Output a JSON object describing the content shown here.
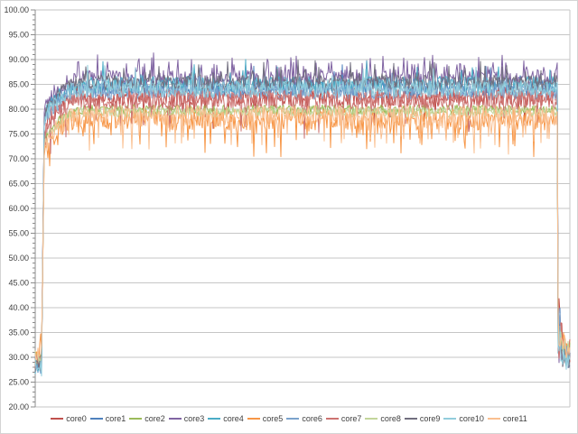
{
  "chart_data": {
    "type": "line",
    "title": "",
    "xlabel": "",
    "ylabel": "",
    "description": "Per-core CPU temperature log: 12 cores idle near 28-31, ramp under load to a noisy plateau (orange lowest ~75-79, purple highest ~85-90), then drop back to ~30-35 at the end of the run",
    "ylim": [
      20,
      100
    ],
    "ytick_step": 5,
    "ytick_labels": [
      "100.00",
      "95.00",
      "90.00",
      "85.00",
      "80.00",
      "75.00",
      "70.00",
      "65.00",
      "60.00",
      "55.00",
      "50.00",
      "45.00",
      "40.00",
      "35.00",
      "30.00",
      "25.00",
      "20.00"
    ],
    "minor_tick_step": 1,
    "grid": true,
    "legend_position": "bottom",
    "n_samples": 593,
    "phases": {
      "idle_until": 7,
      "ramp_fast_end": 10,
      "ramp_slow_end": 46,
      "drop_at": 579
    },
    "colors": {
      "gridline": "#c6c6c6",
      "axis": "#8c8c8c",
      "tick": "#8c8c8c",
      "label": "#3f3f3f",
      "frame_border": "#d4d4d4",
      "background": "#ffffff"
    },
    "series": [
      {
        "name": "core0",
        "color": "#C0504D",
        "seed": 101,
        "idle": 29.0,
        "plateau": 82.4,
        "noise": 2.0,
        "dip_chance": 0.04,
        "spike_chance": 0.0,
        "start_bump": 0,
        "tail": 31,
        "tail_spike": 14
      },
      {
        "name": "core1",
        "color": "#4F81BD",
        "seed": 102,
        "idle": 28.2,
        "plateau": 84.4,
        "noise": 1.7,
        "dip_chance": 0.0,
        "spike_chance": 0.03,
        "start_bump": 0,
        "tail": 30,
        "tail_spike": 20
      },
      {
        "name": "core2",
        "color": "#9BBB59",
        "seed": 103,
        "idle": 29.5,
        "plateau": 79.9,
        "noise": 1.0,
        "dip_chance": 0.0,
        "spike_chance": 0.0,
        "start_bump": 0,
        "tail": 31,
        "tail_spike": 8
      },
      {
        "name": "core3",
        "color": "#8064A2",
        "seed": 104,
        "idle": 28.8,
        "plateau": 86.4,
        "noise": 1.6,
        "dip_chance": 0.0,
        "spike_chance": 0.18,
        "start_bump": 0,
        "tail": 30,
        "tail_spike": 10
      },
      {
        "name": "core4",
        "color": "#4BACC6",
        "seed": 105,
        "idle": 28.0,
        "plateau": 84.9,
        "noise": 1.7,
        "dip_chance": 0.0,
        "spike_chance": 0.04,
        "start_bump": 0,
        "tail": 29,
        "tail_spike": 22
      },
      {
        "name": "core5",
        "color": "#F79646",
        "seed": 106,
        "idle": 30.0,
        "plateau": 77.9,
        "noise": 2.1,
        "dip_chance": 0.1,
        "spike_chance": 0.0,
        "start_bump": 5,
        "tail": 32,
        "tail_spike": 8
      },
      {
        "name": "core6",
        "color": "#7BA2CC",
        "seed": 107,
        "idle": 28.6,
        "plateau": 83.5,
        "noise": 1.7,
        "dip_chance": 0.0,
        "spike_chance": 0.03,
        "start_bump": 0,
        "tail": 30,
        "tail_spike": 12
      },
      {
        "name": "core7",
        "color": "#CD7371",
        "seed": 108,
        "idle": 29.2,
        "plateau": 81.9,
        "noise": 2.0,
        "dip_chance": 0.05,
        "spike_chance": 0.0,
        "start_bump": 0,
        "tail": 31,
        "tail_spike": 16
      },
      {
        "name": "core8",
        "color": "#C3D69B",
        "seed": 109,
        "idle": 29.8,
        "plateau": 79.4,
        "noise": 1.0,
        "dip_chance": 0.0,
        "spike_chance": 0.0,
        "start_bump": 0,
        "tail": 31,
        "tail_spike": 7
      },
      {
        "name": "core9",
        "color": "#716E7E",
        "seed": 110,
        "idle": 28.4,
        "plateau": 85.3,
        "noise": 1.6,
        "dip_chance": 0.0,
        "spike_chance": 0.1,
        "start_bump": 0,
        "tail": 30,
        "tail_spike": 9
      },
      {
        "name": "core10",
        "color": "#92CDDC",
        "seed": 111,
        "idle": 27.8,
        "plateau": 84.1,
        "noise": 1.7,
        "dip_chance": 0.0,
        "spike_chance": 0.03,
        "start_bump": 0,
        "tail": 29,
        "tail_spike": 18
      },
      {
        "name": "core11",
        "color": "#FABF8F",
        "seed": 112,
        "idle": 30.2,
        "plateau": 78.7,
        "noise": 2.1,
        "dip_chance": 0.1,
        "spike_chance": 0.0,
        "start_bump": 4,
        "tail": 32,
        "tail_spike": 9
      }
    ]
  }
}
